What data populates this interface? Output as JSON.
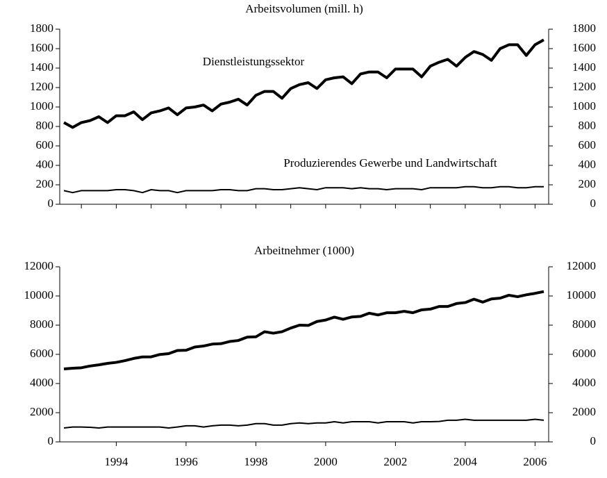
{
  "chart_data": [
    {
      "type": "line",
      "title": "Arbeitsvolumen (mill. h)",
      "x": [
        1993,
        1993.25,
        1993.5,
        1993.75,
        1994,
        1994.25,
        1994.5,
        1994.75,
        1995,
        1995.25,
        1995.5,
        1995.75,
        1996,
        1996.25,
        1996.5,
        1996.75,
        1997,
        1997.25,
        1997.5,
        1997.75,
        1998,
        1998.25,
        1998.5,
        1998.75,
        1999,
        1999.25,
        1999.5,
        1999.75,
        2000,
        2000.25,
        2000.5,
        2000.75,
        2001,
        2001.25,
        2001.5,
        2001.75,
        2002,
        2002.25,
        2002.5,
        2002.75,
        2003,
        2003.25,
        2003.5,
        2003.75,
        2004,
        2004.25,
        2004.5,
        2004.75,
        2005,
        2005.25,
        2005.5,
        2005.75,
        2006,
        2006.25,
        2006.5,
        2006.75
      ],
      "series": [
        {
          "name": "Dienstleistungssektor",
          "color": "#000000",
          "width": 4,
          "values": [
            840,
            790,
            840,
            860,
            900,
            840,
            910,
            910,
            950,
            870,
            940,
            960,
            990,
            920,
            990,
            1000,
            1020,
            960,
            1030,
            1050,
            1080,
            1020,
            1120,
            1160,
            1160,
            1090,
            1190,
            1230,
            1250,
            1190,
            1280,
            1300,
            1310,
            1240,
            1340,
            1360,
            1360,
            1300,
            1390,
            1390,
            1390,
            1310,
            1420,
            1460,
            1490,
            1420,
            1510,
            1570,
            1540,
            1480,
            1600,
            1640,
            1640,
            1530,
            1640,
            1690
          ]
        },
        {
          "name": "Produzierendes Gewerbe und Landwirtschaft",
          "color": "#000000",
          "width": 2,
          "values": [
            140,
            120,
            140,
            140,
            140,
            140,
            150,
            150,
            140,
            120,
            150,
            140,
            140,
            120,
            140,
            140,
            140,
            140,
            150,
            150,
            140,
            140,
            160,
            160,
            150,
            150,
            160,
            170,
            160,
            150,
            170,
            170,
            170,
            160,
            170,
            160,
            160,
            150,
            160,
            160,
            160,
            150,
            170,
            170,
            170,
            170,
            180,
            180,
            170,
            170,
            180,
            180,
            170,
            170,
            180,
            180
          ]
        }
      ],
      "xlim": [
        1992.88,
        2006.89
      ],
      "xticks": [
        1993.5,
        1994.5,
        1995.5,
        1996.5,
        1997.5,
        1998.5,
        1999.5,
        2000.5,
        2001.5,
        2002.5,
        2003.5,
        2004.5,
        2005.5,
        2006.5
      ],
      "ylim": [
        0,
        1800
      ],
      "yticks": [
        0,
        200,
        400,
        600,
        800,
        1000,
        1200,
        1400,
        1600,
        1800
      ],
      "y2lim": [
        0,
        1800
      ],
      "y2ticks": [
        0,
        200,
        400,
        600,
        800,
        1000,
        1200,
        1400,
        1600,
        1800
      ]
    },
    {
      "type": "line",
      "title": "Arbeitnehmer (1000)",
      "x": [
        1993,
        1993.25,
        1993.5,
        1993.75,
        1994,
        1994.25,
        1994.5,
        1994.75,
        1995,
        1995.25,
        1995.5,
        1995.75,
        1996,
        1996.25,
        1996.5,
        1996.75,
        1997,
        1997.25,
        1997.5,
        1997.75,
        1998,
        1998.25,
        1998.5,
        1998.75,
        1999,
        1999.25,
        1999.5,
        1999.75,
        2000,
        2000.25,
        2000.5,
        2000.75,
        2001,
        2001.25,
        2001.5,
        2001.75,
        2002,
        2002.25,
        2002.5,
        2002.75,
        2003,
        2003.25,
        2003.5,
        2003.75,
        2004,
        2004.25,
        2004.5,
        2004.75,
        2005,
        2005.25,
        2005.5,
        2005.75,
        2006,
        2006.25,
        2006.5,
        2006.75
      ],
      "series": [
        {
          "color": "#000000",
          "width": 4,
          "values": [
            5000,
            5050,
            5080,
            5200,
            5280,
            5380,
            5450,
            5570,
            5720,
            5820,
            5830,
            5990,
            6050,
            6260,
            6280,
            6500,
            6570,
            6700,
            6730,
            6880,
            6950,
            7180,
            7200,
            7550,
            7450,
            7550,
            7800,
            8000,
            7980,
            8250,
            8350,
            8550,
            8400,
            8560,
            8600,
            8820,
            8700,
            8850,
            8850,
            8950,
            8850,
            9050,
            9100,
            9280,
            9280,
            9480,
            9550,
            9780,
            9580,
            9800,
            9850,
            10050,
            9950,
            10080,
            10180,
            10300
          ]
        },
        {
          "color": "#000000",
          "width": 2,
          "values": [
            950,
            1020,
            1020,
            1000,
            950,
            1020,
            1020,
            1020,
            1020,
            1020,
            1020,
            1020,
            950,
            1020,
            1100,
            1100,
            1020,
            1100,
            1150,
            1150,
            1100,
            1150,
            1250,
            1250,
            1150,
            1150,
            1250,
            1300,
            1250,
            1300,
            1300,
            1380,
            1300,
            1380,
            1380,
            1380,
            1300,
            1380,
            1380,
            1380,
            1300,
            1380,
            1380,
            1400,
            1480,
            1480,
            1550,
            1480,
            1480,
            1480,
            1480,
            1480,
            1480,
            1480,
            1550,
            1480
          ]
        }
      ],
      "xlim": [
        1992.88,
        2006.89
      ],
      "xticks": [
        {
          "value": 1994.5,
          "label": "1994"
        },
        {
          "value": 1996.5,
          "label": "1996"
        },
        {
          "value": 1998.5,
          "label": "1998"
        },
        {
          "value": 2000.5,
          "label": "2000"
        },
        {
          "value": 2002.5,
          "label": "2002"
        },
        {
          "value": 2004.5,
          "label": "2004"
        },
        {
          "value": 2006.5,
          "label": "2006"
        }
      ],
      "ylim": [
        0,
        12000
      ],
      "yticks": [
        0,
        2000,
        4000,
        6000,
        8000,
        10000,
        12000
      ],
      "y2lim": [
        0,
        12000
      ],
      "y2ticks": [
        0,
        2000,
        4000,
        6000,
        8000,
        10000,
        12000
      ]
    }
  ]
}
